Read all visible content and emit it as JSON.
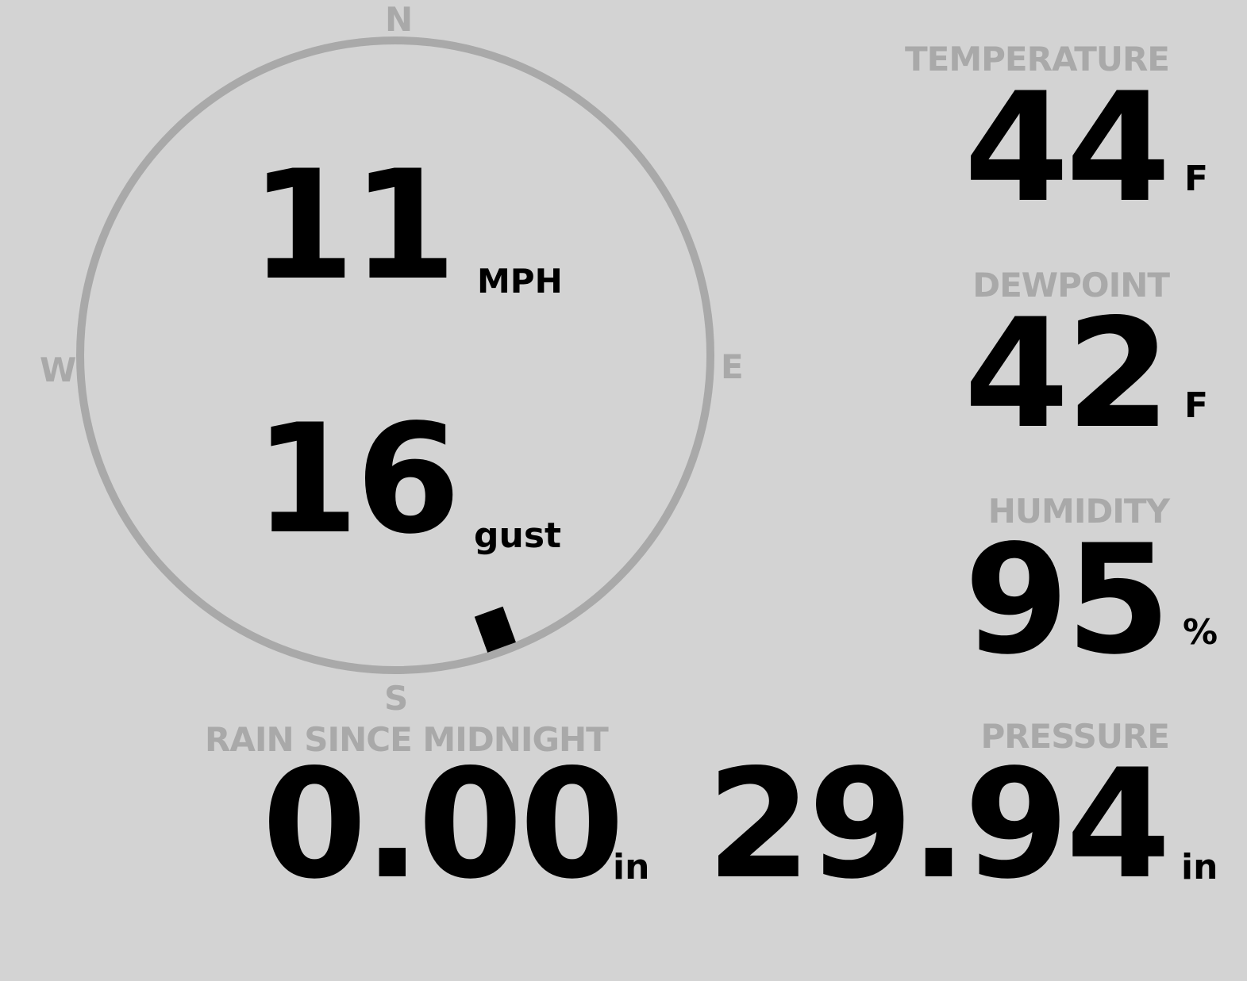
{
  "compass": {
    "north": "N",
    "east": "E",
    "south": "S",
    "west": "W",
    "wind_direction_deg": 160,
    "ring_color": "#a9a9a9"
  },
  "wind": {
    "speed": "11",
    "speed_unit": "MPH",
    "gust": "16",
    "gust_unit": "gust"
  },
  "temperature": {
    "label": "TEMPERATURE",
    "value": "44",
    "unit": "F"
  },
  "dewpoint": {
    "label": "DEWPOINT",
    "value": "42",
    "unit": "F"
  },
  "humidity": {
    "label": "HUMIDITY",
    "value": "95",
    "unit": "%"
  },
  "rain": {
    "label": "RAIN SINCE MIDNIGHT",
    "value": "0.00",
    "unit": "in"
  },
  "pressure": {
    "label": "PRESSURE",
    "value": "29.94",
    "unit": "in"
  },
  "colors": {
    "background": "#d3d3d3",
    "label": "#a9a9a9",
    "value": "#000000"
  }
}
